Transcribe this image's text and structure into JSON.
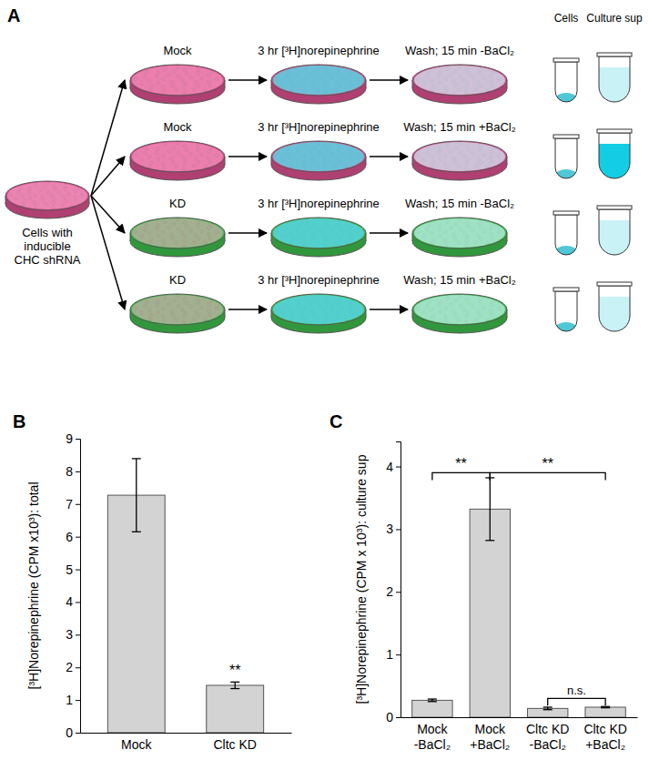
{
  "diagram": {
    "label": "A",
    "source": [
      "Cells with",
      "inducible",
      "CHC shRNA"
    ],
    "rows": [
      {
        "treatment": "Mock",
        "loading": "3 hr [³H]norepinephrine",
        "wash": "Wash; 15 min -BaCl₂"
      },
      {
        "treatment": "Mock",
        "loading": "3 hr [³H]norepinephrine",
        "wash": "Wash; 15 min +BaCl₂"
      },
      {
        "treatment": "KD",
        "loading": "3 hr [³H]norepinephrine",
        "wash": "Wash; 15 min -BaCl₂"
      },
      {
        "treatment": "KD",
        "loading": "3 hr [³H]norepinephrine",
        "wash": "Wash; 15 min +BaCl₂"
      }
    ],
    "tube_labels": [
      "Cells",
      "Culture sup"
    ]
  },
  "chart_data": [
    {
      "type": "bar",
      "label": "B",
      "y_label": "[³H]Norepinephrine (CPM x10³): total",
      "categories": [
        "Mock",
        "Cltc KD"
      ],
      "values": [
        7.27,
        1.45
      ],
      "errors": [
        1.12,
        0.1
      ],
      "color": "#d3d3d3",
      "ylim": [
        0,
        9
      ],
      "yticks": [
        0,
        1,
        2,
        3,
        4,
        5,
        6,
        7,
        8,
        9
      ],
      "annotations": [
        {
          "text": "**",
          "category": 1,
          "y": 1.75
        }
      ]
    },
    {
      "type": "bar",
      "label": "C",
      "y_label": "[³H]Norepinephrine (CPM x 10³): culture sup",
      "categories": [
        "Mock -BaCl₂",
        "Mock +BaCl₂",
        "Cltc KD -BaCl₂",
        "Cltc KD +BaCl₂"
      ],
      "values": [
        0.27,
        3.32,
        0.14,
        0.16
      ],
      "errors": [
        0.02,
        0.5,
        0.02,
        0.01
      ],
      "color": "#d3d3d3",
      "ylim": [
        0,
        4.4
      ],
      "yticks": [
        0,
        1,
        2,
        3,
        4
      ],
      "annotations": [
        {
          "text": "**",
          "from": 0,
          "to": 1,
          "y": 3.9
        },
        {
          "text": "**",
          "from": 1,
          "to": 3,
          "y": 3.9
        },
        {
          "text": "n.s.",
          "from": 2,
          "to": 3,
          "y": 0.3
        }
      ]
    }
  ]
}
